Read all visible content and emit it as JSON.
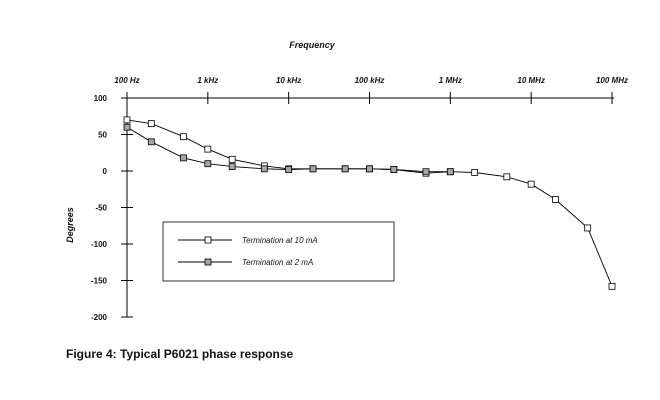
{
  "figure": {
    "caption": "Figure 4: Typical P6021 phase response"
  },
  "chart_data": {
    "type": "line",
    "title": "Frequency",
    "xlabel": "Frequency",
    "ylabel": "Degrees",
    "x_scale": "log",
    "xlim": [
      100,
      100000000
    ],
    "ylim": [
      -200,
      100
    ],
    "x_ticks": [
      {
        "value": 100,
        "label": "100 Hz"
      },
      {
        "value": 1000,
        "label": "1 kHz"
      },
      {
        "value": 10000,
        "label": "10 kHz"
      },
      {
        "value": 100000,
        "label": "100 kHz"
      },
      {
        "value": 1000000,
        "label": "1 MHz"
      },
      {
        "value": 10000000,
        "label": "10 MHz"
      },
      {
        "value": 100000000,
        "label": "100 MHz"
      }
    ],
    "y_ticks": [
      {
        "value": 100,
        "label": "100"
      },
      {
        "value": 50,
        "label": "50"
      },
      {
        "value": 0,
        "label": "0"
      },
      {
        "value": -50,
        "label": "-50"
      },
      {
        "value": -100,
        "label": "-100"
      },
      {
        "value": -150,
        "label": "-150"
      },
      {
        "value": -200,
        "label": "-200"
      }
    ],
    "x_axis_position": "top",
    "grid": false,
    "legend_position": "lower-left",
    "series": [
      {
        "name": "Termination at 10 mA",
        "marker": "open-square",
        "marker_fill": "#ffffff",
        "points": [
          [
            100,
            70
          ],
          [
            200,
            65
          ],
          [
            500,
            47
          ],
          [
            1000,
            30
          ],
          [
            2000,
            16
          ],
          [
            5000,
            7
          ],
          [
            10000,
            3
          ],
          [
            20000,
            3
          ],
          [
            50000,
            3
          ],
          [
            100000,
            3
          ],
          [
            200000,
            2
          ],
          [
            500000,
            -3
          ],
          [
            1000000,
            -1
          ],
          [
            2000000,
            -2
          ],
          [
            5000000,
            -8
          ],
          [
            10000000,
            -18
          ],
          [
            20000000,
            -39
          ],
          [
            50000000,
            -78
          ],
          [
            100000000,
            -158
          ]
        ]
      },
      {
        "name": "Termination at 2 mA",
        "marker": "gray-square",
        "marker_fill": "#a6a6a6",
        "points": [
          [
            100,
            60
          ],
          [
            200,
            40
          ],
          [
            500,
            18
          ],
          [
            1000,
            10
          ],
          [
            2000,
            6
          ],
          [
            5000,
            3
          ],
          [
            10000,
            2
          ],
          [
            20000,
            3
          ],
          [
            50000,
            3
          ],
          [
            100000,
            3
          ],
          [
            200000,
            2
          ],
          [
            500000,
            -1
          ],
          [
            1000000,
            -1
          ]
        ]
      }
    ]
  }
}
